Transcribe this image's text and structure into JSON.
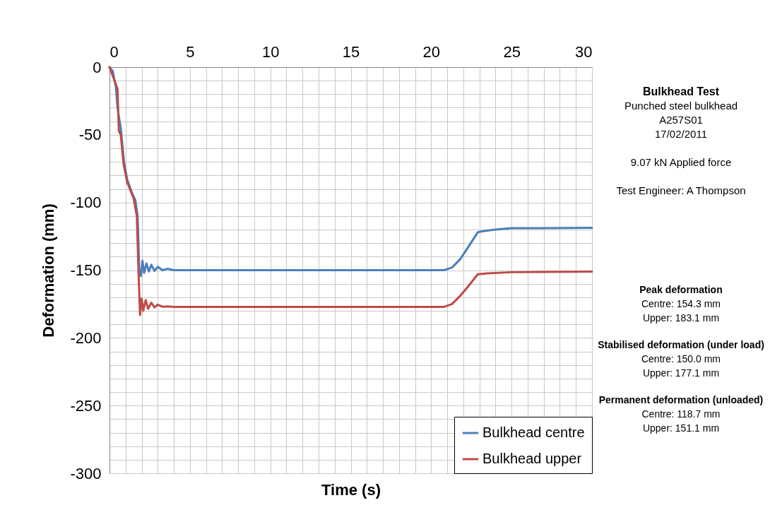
{
  "chart_data": {
    "type": "line",
    "title": "Bulkhead Test",
    "xlabel": "Time (s)",
    "ylabel": "Deformation (mm)",
    "xlim": [
      0,
      30
    ],
    "ylim": [
      -300,
      0
    ],
    "xticks": [
      0,
      {
        "value": 1,
        "label": null
      },
      {
        "value": 2,
        "label": null
      },
      {
        "value": 3,
        "label": null
      },
      {
        "value": 4,
        "label": null
      },
      5,
      {
        "value": 6,
        "label": null
      },
      {
        "value": 7,
        "label": null
      },
      {
        "value": 8,
        "label": null
      },
      {
        "value": 9,
        "label": null
      },
      10,
      {
        "value": 11,
        "label": null
      },
      {
        "value": 12,
        "label": null
      },
      {
        "value": 13,
        "label": null
      },
      {
        "value": 14,
        "label": null
      },
      15,
      {
        "value": 16,
        "label": null
      },
      {
        "value": 17,
        "label": null
      },
      {
        "value": 18,
        "label": null
      },
      {
        "value": 19,
        "label": null
      },
      20,
      {
        "value": 21,
        "label": null
      },
      {
        "value": 22,
        "label": null
      },
      {
        "value": 23,
        "label": null
      },
      {
        "value": 24,
        "label": null
      },
      25,
      {
        "value": 26,
        "label": null
      },
      {
        "value": 27,
        "label": null
      },
      {
        "value": 28,
        "label": null
      },
      {
        "value": 29,
        "label": null
      },
      30
    ],
    "yticks": [
      -300,
      {
        "value": -290,
        "label": null
      },
      {
        "value": -280,
        "label": null
      },
      {
        "value": -270,
        "label": null
      },
      {
        "value": -260,
        "label": null
      },
      -250,
      {
        "value": -240,
        "label": null
      },
      {
        "value": -230,
        "label": null
      },
      {
        "value": -220,
        "label": null
      },
      {
        "value": -210,
        "label": null
      },
      -200,
      {
        "value": -190,
        "label": null
      },
      {
        "value": -180,
        "label": null
      },
      {
        "value": -170,
        "label": null
      },
      {
        "value": -160,
        "label": null
      },
      -150,
      {
        "value": -140,
        "label": null
      },
      {
        "value": -130,
        "label": null
      },
      {
        "value": -120,
        "label": null
      },
      {
        "value": -110,
        "label": null
      },
      -100,
      {
        "value": -90,
        "label": null
      },
      {
        "value": -80,
        "label": null
      },
      {
        "value": -70,
        "label": null
      },
      {
        "value": -60,
        "label": null
      },
      -50,
      {
        "value": -40,
        "label": null
      },
      {
        "value": -30,
        "label": null
      },
      {
        "value": -20,
        "label": null
      },
      {
        "value": -10,
        "label": null
      },
      0
    ],
    "grid": true,
    "legend": "bottom right",
    "annotations": [
      "Punched steel bulkhead",
      "A257S01",
      "17/02/2011",
      "9.07 kN Applied force",
      "Test Engineer: A Thompson",
      "Peak deformation",
      "Centre:  154.3 mm",
      "Upper: 183.1 mm",
      "Stabilised deformation (under load)",
      "Centre:  150.0 mm",
      "Upper: 177.1 mm",
      "Permanent deformation (unloaded)",
      "Centre:  118.7 mm",
      "Upper: 151.1 mm"
    ],
    "series": [
      {
        "name": "Bulkhead centre",
        "color": "#4a7ebb",
        "x": [
          0,
          0.2,
          0.4,
          0.5,
          0.6,
          0.7,
          0.9,
          1.1,
          1.4,
          1.6,
          1.75,
          1.85,
          1.95,
          2.05,
          2.15,
          2.3,
          2.45,
          2.6,
          2.8,
          3.0,
          3.3,
          3.6,
          4,
          10,
          20,
          20.8,
          21.3,
          21.8,
          22.3,
          22.9,
          23.3,
          24,
          25,
          30
        ],
        "values": [
          0,
          -3,
          -15,
          -30,
          -38,
          -45,
          -70,
          -83,
          -93,
          -98,
          -110,
          -150,
          -154.3,
          -143,
          -152,
          -145,
          -151,
          -146,
          -150.5,
          -147.5,
          -150,
          -149,
          -150,
          -150,
          -150,
          -150,
          -148,
          -142,
          -133,
          -122,
          -121,
          -120,
          -119,
          -118.7
        ]
      },
      {
        "name": "Bulkhead upper",
        "color": "#be4b48",
        "x": [
          0,
          0.22,
          0.5,
          0.58,
          0.7,
          0.88,
          1.1,
          1.5,
          1.7,
          1.8,
          1.9,
          2.0,
          2.1,
          2.25,
          2.4,
          2.6,
          2.8,
          3.0,
          3.3,
          3.6,
          4,
          20.8,
          21.3,
          21.8,
          22.3,
          22.9,
          23.5,
          25,
          30
        ],
        "values": [
          0,
          -7,
          -16,
          -47,
          -50,
          -72,
          -85,
          -97,
          -110,
          -150,
          -183.1,
          -171,
          -180,
          -172,
          -178.5,
          -174,
          -177.5,
          -175.5,
          -177,
          -176.8,
          -177.1,
          -177.1,
          -175,
          -169,
          -162,
          -153,
          -152.3,
          -151.5,
          -151.1
        ]
      }
    ]
  }
}
